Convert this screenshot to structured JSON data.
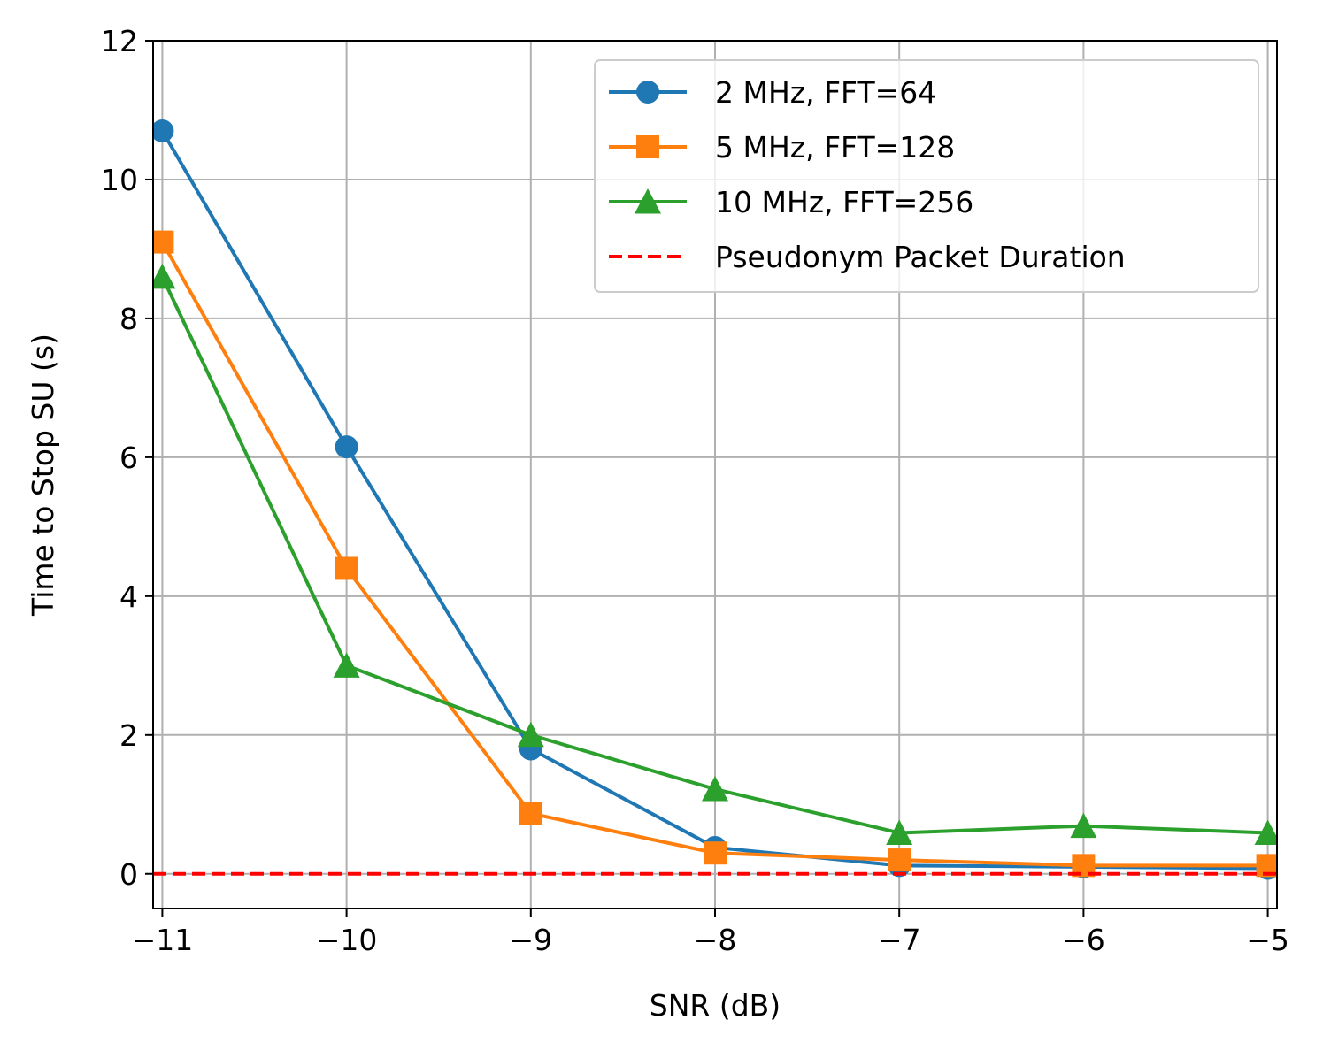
{
  "chart_data": {
    "type": "line",
    "title": "",
    "xlabel": "SNR (dB)",
    "ylabel": "Time to Stop SU (s)",
    "xlim": [
      -11.05,
      -4.95
    ],
    "ylim": [
      -0.5,
      12
    ],
    "grid": true,
    "legend_position": "top-right",
    "x": [
      -11,
      -10,
      -9,
      -8,
      -7,
      -6,
      -5
    ],
    "xticks": [
      -11,
      -10,
      -9,
      -8,
      -7,
      -6,
      -5
    ],
    "xtick_labels": [
      "−11",
      "−10",
      "−9",
      "−8",
      "−7",
      "−6",
      "−5"
    ],
    "yticks": [
      0,
      2,
      4,
      6,
      8,
      10,
      12
    ],
    "ytick_labels": [
      "0",
      "2",
      "4",
      "6",
      "8",
      "10",
      "12"
    ],
    "series": [
      {
        "name": "2 MHz, FFT=64",
        "color": "#1f77b4",
        "marker": "circle",
        "linestyle": "solid",
        "values": [
          10.7,
          6.15,
          1.8,
          0.38,
          0.12,
          0.1,
          0.08
        ]
      },
      {
        "name": "5 MHz, FFT=128",
        "color": "#ff7f0e",
        "marker": "square",
        "linestyle": "solid",
        "values": [
          9.1,
          4.4,
          0.87,
          0.3,
          0.2,
          0.12,
          0.12
        ]
      },
      {
        "name": "10 MHz, FFT=256",
        "color": "#2ca02c",
        "marker": "triangle",
        "linestyle": "solid",
        "values": [
          8.6,
          3.0,
          2.0,
          1.22,
          0.59,
          0.69,
          0.59
        ]
      },
      {
        "name": "Pseudonym Packet Duration",
        "color": "#ff0000",
        "marker": "none",
        "linestyle": "dashed",
        "values": [
          0,
          0,
          0,
          0,
          0,
          0,
          0
        ]
      }
    ]
  }
}
